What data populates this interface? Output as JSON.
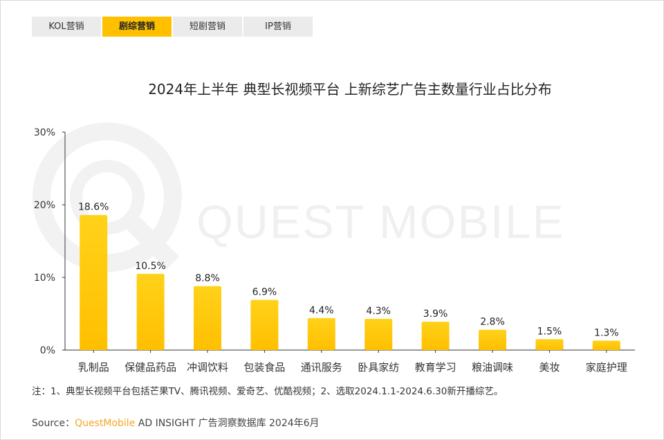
{
  "tabs": [
    {
      "label": "KOL营销",
      "active": false
    },
    {
      "label": "剧综营销",
      "active": true
    },
    {
      "label": "短剧营销",
      "active": false
    },
    {
      "label": "IP营销",
      "active": false
    }
  ],
  "watermark": "QUEST MOBILE",
  "note": "注：1、典型长视频平台包括芒果TV、腾讯视频、爱奇艺、优酷视频；2、选取2024.1.1-2024.6.30新开播综艺。",
  "source": {
    "prefix": "Source：",
    "brand": "QuestMobile",
    "suffix": " AD INSIGHT 广告洞察数据库 2024年6月"
  },
  "colors": {
    "accent": "#ffc000",
    "bar_top": "#ffd21a",
    "bar_bottom": "#ffbf00",
    "tab_inactive": "#ebebeb",
    "source_brand": "#f5a623"
  },
  "chart_data": {
    "type": "bar",
    "title": "2024年上半年 典型长视频平台 上新综艺广告主数量行业占比分布",
    "categories": [
      "乳制品",
      "保健品药品",
      "冲调饮料",
      "包装食品",
      "通讯服务",
      "卧具家纺",
      "教育学习",
      "粮油调味",
      "美妆",
      "家庭护理"
    ],
    "values": [
      18.6,
      10.5,
      8.8,
      6.9,
      4.4,
      4.3,
      3.9,
      2.8,
      1.5,
      1.3
    ],
    "value_labels": [
      "18.6%",
      "10.5%",
      "8.8%",
      "6.9%",
      "4.4%",
      "4.3%",
      "3.9%",
      "2.8%",
      "1.5%",
      "1.3%"
    ],
    "yticks": [
      "0%",
      "10%",
      "20%",
      "30%"
    ],
    "ylim": [
      0,
      30
    ],
    "xlabel": "",
    "ylabel": "",
    "grid": false
  }
}
